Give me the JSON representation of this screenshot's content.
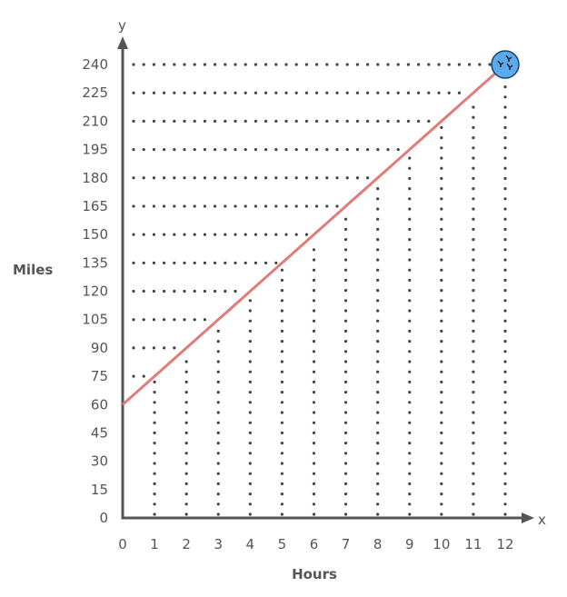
{
  "chart_data": {
    "type": "line",
    "title": "",
    "xlabel": "Hours",
    "ylabel": "Miles",
    "x_axis_letter": "x",
    "y_axis_letter": "y",
    "xlim": [
      0,
      12
    ],
    "ylim": [
      0,
      240
    ],
    "x_ticks": [
      0,
      1,
      2,
      3,
      4,
      5,
      6,
      7,
      8,
      9,
      10,
      11,
      12
    ],
    "y_ticks": [
      0,
      15,
      30,
      45,
      60,
      75,
      90,
      105,
      120,
      135,
      150,
      165,
      180,
      195,
      210,
      225,
      240
    ],
    "series": [
      {
        "x": [
          0,
          1,
          2,
          3,
          4,
          5,
          6,
          7,
          8,
          9,
          10,
          11,
          12
        ],
        "y": [
          60,
          75,
          90,
          105,
          120,
          135,
          150,
          165,
          180,
          195,
          210,
          225,
          240
        ],
        "color": "#e07b78"
      }
    ],
    "guide_lines": "dotted",
    "endpoint_marker": {
      "x": 12,
      "y": 240,
      "color": "#5aaaf0",
      "icon": "birds-icon"
    },
    "axis_color": "#555555",
    "dot_color": "#444444"
  }
}
